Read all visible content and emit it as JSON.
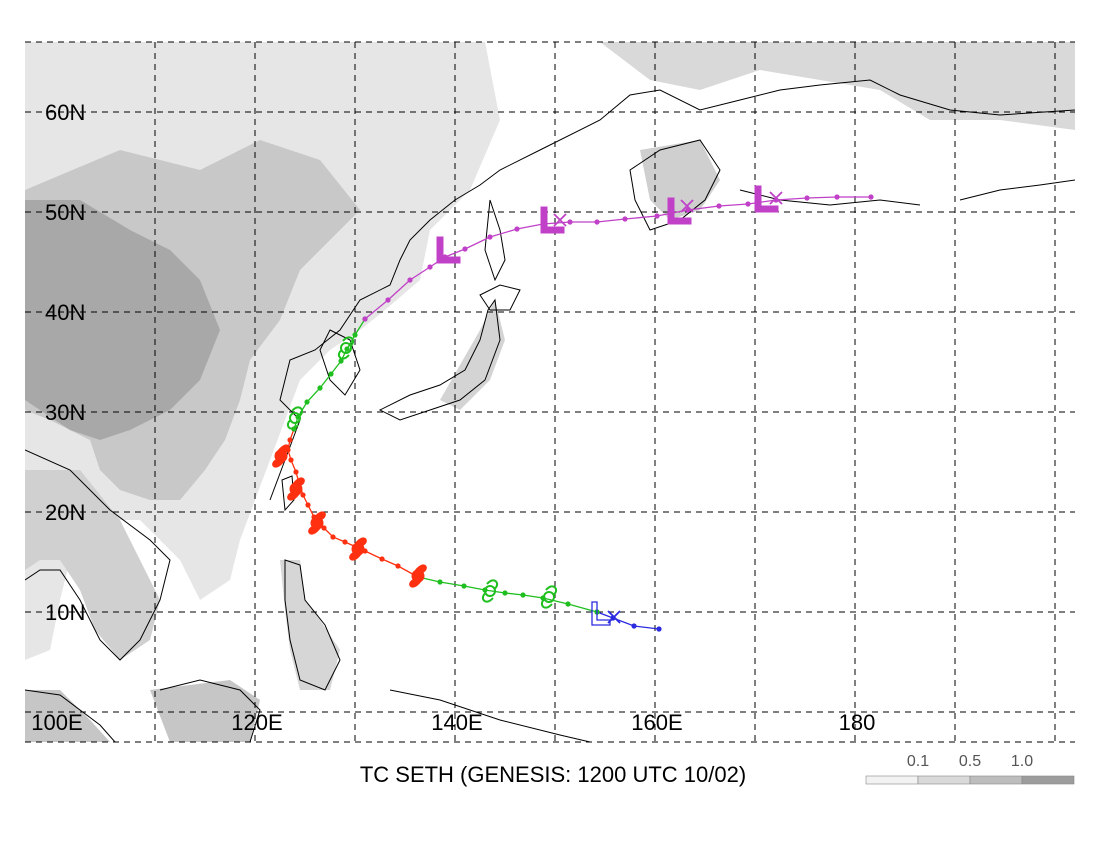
{
  "title": "TC SETH (GENESIS: 1200 UTC 10/02)",
  "lon_labels": [
    "100E",
    "120E",
    "140E",
    "160E",
    "180"
  ],
  "lat_labels": [
    "60N",
    "50N",
    "40N",
    "30N",
    "20N",
    "10N"
  ],
  "legend": {
    "labels": [
      "0.1",
      "0.5",
      "1.0"
    ],
    "colors": [
      "#f2f2f2",
      "#d9d9d9",
      "#bdbdbd",
      "#9c9c9c"
    ]
  },
  "colors": {
    "depression": "#2a2ae0",
    "storm": "#1fbf1f",
    "typhoon": "#ff3010",
    "extratropical": "#c040c8",
    "grid": "#000000",
    "coast": "#000000"
  },
  "map_extent": {
    "lon": [
      97,
      202
    ],
    "lat": [
      -3,
      67
    ]
  },
  "chart_data": {
    "type": "map",
    "segments": [
      {
        "stage": "depression",
        "points": [
          [
            160.4,
            8.3
          ],
          [
            157.9,
            8.6
          ],
          [
            155.8,
            9.4
          ],
          [
            154.2,
            10.0
          ]
        ]
      },
      {
        "stage": "storm",
        "points": [
          [
            154.2,
            10.0
          ],
          [
            151.3,
            10.8
          ],
          [
            148.8,
            11.4
          ],
          [
            146.8,
            11.7
          ],
          [
            145.0,
            11.9
          ],
          [
            143.0,
            12.2
          ],
          [
            140.9,
            12.6
          ],
          [
            138.5,
            13.0
          ],
          [
            136.3,
            13.5
          ]
        ]
      },
      {
        "stage": "typhoon",
        "points": [
          [
            136.3,
            13.5
          ],
          [
            134.3,
            14.6
          ],
          [
            132.7,
            15.3
          ],
          [
            131.0,
            16.1
          ],
          [
            129.0,
            17.0
          ],
          [
            127.8,
            17.5
          ],
          [
            126.9,
            18.4
          ],
          [
            125.9,
            19.5
          ],
          [
            125.3,
            20.7
          ],
          [
            124.8,
            21.7
          ],
          [
            124.4,
            22.9
          ],
          [
            124.1,
            24.0
          ],
          [
            123.6,
            25.2
          ],
          [
            123.3,
            26.2
          ],
          [
            123.5,
            27.2
          ],
          [
            123.9,
            28.3
          ]
        ]
      },
      {
        "stage": "storm",
        "points": [
          [
            123.9,
            28.3
          ],
          [
            124.3,
            29.5
          ],
          [
            125.2,
            31.0
          ],
          [
            126.5,
            32.4
          ],
          [
            127.6,
            33.8
          ],
          [
            128.6,
            35.1
          ],
          [
            129.2,
            36.3
          ],
          [
            130.0,
            37.7
          ],
          [
            131.0,
            39.3
          ]
        ]
      },
      {
        "stage": "extratropical",
        "points": [
          [
            131.0,
            39.3
          ],
          [
            133.3,
            41.2
          ],
          [
            135.5,
            43.2
          ],
          [
            137.5,
            44.5
          ],
          [
            139.0,
            45.5
          ],
          [
            141.0,
            46.3
          ],
          [
            143.5,
            47.5
          ],
          [
            146.2,
            48.3
          ],
          [
            148.8,
            48.8
          ],
          [
            151.5,
            49.0
          ],
          [
            154.2,
            49.0
          ],
          [
            157.0,
            49.3
          ],
          [
            160.2,
            49.6
          ],
          [
            163.3,
            50.2
          ],
          [
            166.4,
            50.6
          ],
          [
            169.3,
            50.8
          ],
          [
            172.1,
            51.2
          ],
          [
            175.2,
            51.4
          ],
          [
            178.2,
            51.5
          ],
          [
            181.6,
            51.5
          ]
        ]
      }
    ],
    "markers": [
      {
        "type": "L",
        "lon": 154.6,
        "lat": 9.6,
        "stage": "depression"
      },
      {
        "type": "storm",
        "lon": 143.5,
        "lat": 12.1,
        "stage": "storm"
      },
      {
        "type": "storm",
        "lon": 149.4,
        "lat": 11.5,
        "stage": "storm"
      },
      {
        "type": "typhoon",
        "lon": 136.3,
        "lat": 13.6,
        "stage": "typhoon"
      },
      {
        "type": "typhoon",
        "lon": 130.3,
        "lat": 16.3,
        "stage": "typhoon"
      },
      {
        "type": "typhoon",
        "lon": 126.2,
        "lat": 18.9,
        "stage": "typhoon"
      },
      {
        "type": "typhoon",
        "lon": 124.1,
        "lat": 22.3,
        "stage": "typhoon"
      },
      {
        "type": "typhoon",
        "lon": 122.6,
        "lat": 25.6,
        "stage": "typhoon"
      },
      {
        "type": "storm",
        "lon": 124.0,
        "lat": 29.4,
        "stage": "storm"
      },
      {
        "type": "storm",
        "lon": 129.1,
        "lat": 36.4,
        "stage": "storm"
      },
      {
        "type": "L",
        "lon": 139.3,
        "lat": 45.9,
        "stage": "extratropical"
      },
      {
        "type": "L",
        "lon": 149.7,
        "lat": 48.9,
        "stage": "extratropical"
      },
      {
        "type": "L",
        "lon": 162.4,
        "lat": 49.8,
        "stage": "extratropical"
      },
      {
        "type": "L",
        "lon": 171.1,
        "lat": 51.0,
        "stage": "extratropical"
      }
    ],
    "x_marks": [
      {
        "lon": 155.9,
        "lat": 9.5,
        "stage": "depression"
      },
      {
        "lon": 150.5,
        "lat": 49.2,
        "stage": "extratropical"
      },
      {
        "lon": 163.2,
        "lat": 50.6,
        "stage": "extratropical"
      },
      {
        "lon": 172.1,
        "lat": 51.4,
        "stage": "extratropical"
      }
    ]
  }
}
